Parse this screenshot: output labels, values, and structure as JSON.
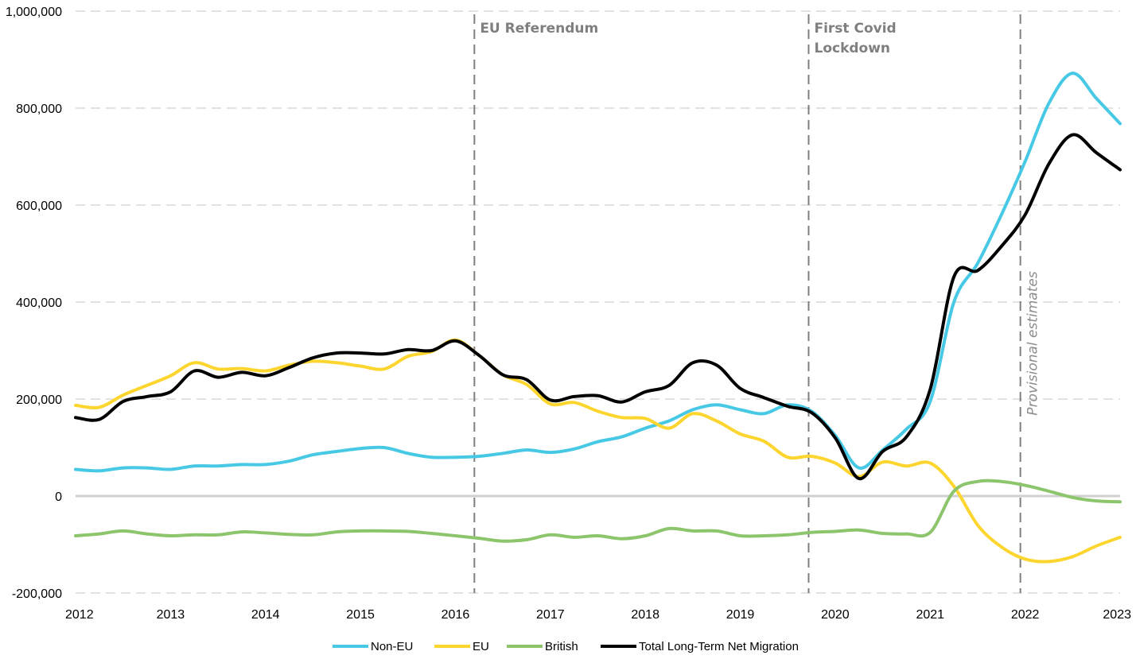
{
  "chart_data": {
    "type": "line",
    "title": "",
    "xlabel": "",
    "ylabel": "",
    "x_ticks": [
      "2012",
      "2013",
      "2014",
      "2015",
      "2016",
      "2017",
      "2018",
      "2019",
      "2020",
      "2021",
      "2022",
      "2023"
    ],
    "y_ticks": [
      "-200,000",
      "0",
      "200,000",
      "400,000",
      "600,000",
      "800,000",
      "1,000,000"
    ],
    "xlim": [
      2012,
      2023
    ],
    "ylim": [
      -200000,
      1000000
    ],
    "grid": "horizontal dashed",
    "legend_position": "bottom",
    "series": [
      {
        "name": "Non-EU",
        "color": "#47c9e5",
        "x": [
          2012,
          2012.25,
          2012.5,
          2012.75,
          2013,
          2013.25,
          2013.5,
          2013.75,
          2014,
          2014.25,
          2014.5,
          2014.75,
          2015,
          2015.25,
          2015.5,
          2015.75,
          2016,
          2016.25,
          2016.5,
          2016.75,
          2017,
          2017.25,
          2017.5,
          2017.75,
          2018,
          2018.25,
          2018.5,
          2018.75,
          2019,
          2019.25,
          2019.5,
          2019.75,
          2020,
          2020.25,
          2020.5,
          2020.75,
          2021,
          2021.25,
          2021.5,
          2021.75,
          2022,
          2022.25,
          2022.5,
          2022.75,
          2023
        ],
        "y": [
          55000,
          52000,
          58000,
          58000,
          55000,
          62000,
          62000,
          65000,
          65000,
          72000,
          85000,
          92000,
          98000,
          100000,
          88000,
          80000,
          80000,
          82000,
          88000,
          95000,
          90000,
          97000,
          112000,
          122000,
          140000,
          155000,
          178000,
          188000,
          178000,
          170000,
          188000,
          175000,
          125000,
          58000,
          95000,
          138000,
          195000,
          400000,
          480000,
          580000,
          690000,
          810000,
          872000,
          820000,
          768000
        ]
      },
      {
        "name": "EU",
        "color": "#fdd52f",
        "x": [
          2012,
          2012.25,
          2012.5,
          2012.75,
          2013,
          2013.25,
          2013.5,
          2013.75,
          2014,
          2014.25,
          2014.5,
          2014.75,
          2015,
          2015.25,
          2015.5,
          2015.75,
          2016,
          2016.25,
          2016.5,
          2016.75,
          2017,
          2017.25,
          2017.5,
          2017.75,
          2018,
          2018.25,
          2018.5,
          2018.75,
          2019,
          2019.25,
          2019.5,
          2019.75,
          2020,
          2020.25,
          2020.5,
          2020.75,
          2021,
          2021.25,
          2021.5,
          2021.75,
          2022,
          2022.25,
          2022.5,
          2022.75,
          2023
        ],
        "y": [
          187000,
          183000,
          208000,
          228000,
          248000,
          275000,
          262000,
          263000,
          258000,
          270000,
          278000,
          275000,
          268000,
          262000,
          288000,
          298000,
          322000,
          290000,
          250000,
          230000,
          190000,
          193000,
          175000,
          162000,
          160000,
          140000,
          170000,
          155000,
          128000,
          113000,
          80000,
          82000,
          68000,
          40000,
          70000,
          62000,
          68000,
          20000,
          -60000,
          -105000,
          -130000,
          -135000,
          -125000,
          -103000,
          -85000
        ]
      },
      {
        "name": "British",
        "color": "#8cc56b",
        "x": [
          2012,
          2012.25,
          2012.5,
          2012.75,
          2013,
          2013.25,
          2013.5,
          2013.75,
          2014,
          2014.25,
          2014.5,
          2014.75,
          2015,
          2015.25,
          2015.5,
          2015.75,
          2016,
          2016.25,
          2016.5,
          2016.75,
          2017,
          2017.25,
          2017.5,
          2017.75,
          2018,
          2018.25,
          2018.5,
          2018.75,
          2019,
          2019.25,
          2019.5,
          2019.75,
          2020,
          2020.25,
          2020.5,
          2020.75,
          2021,
          2021.25,
          2021.5,
          2021.75,
          2022,
          2022.25,
          2022.5,
          2022.75,
          2023
        ],
        "y": [
          -82000,
          -78000,
          -72000,
          -78000,
          -82000,
          -80000,
          -80000,
          -74000,
          -76000,
          -79000,
          -80000,
          -74000,
          -72000,
          -72000,
          -73000,
          -77000,
          -82000,
          -87000,
          -93000,
          -90000,
          -80000,
          -85000,
          -82000,
          -88000,
          -82000,
          -67000,
          -72000,
          -72000,
          -82000,
          -82000,
          -80000,
          -75000,
          -73000,
          -70000,
          -77000,
          -78000,
          -75000,
          10000,
          30000,
          30000,
          22000,
          10000,
          -3000,
          -10000,
          -12000
        ]
      },
      {
        "name": "Total Long-Term Net Migration",
        "color": "#000000",
        "x": [
          2012,
          2012.25,
          2012.5,
          2012.75,
          2013,
          2013.25,
          2013.5,
          2013.75,
          2014,
          2014.25,
          2014.5,
          2014.75,
          2015,
          2015.25,
          2015.5,
          2015.75,
          2016,
          2016.25,
          2016.5,
          2016.75,
          2017,
          2017.25,
          2017.5,
          2017.75,
          2018,
          2018.25,
          2018.5,
          2018.75,
          2019,
          2019.25,
          2019.5,
          2019.75,
          2020,
          2020.25,
          2020.5,
          2020.75,
          2021,
          2021.25,
          2021.5,
          2021.75,
          2022,
          2022.25,
          2022.5,
          2022.75,
          2023
        ],
        "y": [
          162000,
          158000,
          195000,
          205000,
          215000,
          258000,
          245000,
          255000,
          248000,
          265000,
          285000,
          295000,
          295000,
          293000,
          302000,
          300000,
          320000,
          290000,
          250000,
          240000,
          198000,
          205000,
          207000,
          194000,
          215000,
          228000,
          275000,
          270000,
          222000,
          203000,
          185000,
          172000,
          120000,
          36000,
          92000,
          122000,
          220000,
          452000,
          465000,
          515000,
          580000,
          685000,
          745000,
          708000,
          673000
        ]
      }
    ],
    "annotations": [
      {
        "x": 2016.2,
        "label_lines": [
          "EU Referendum"
        ]
      },
      {
        "x": 2019.72,
        "label_lines": [
          "First Covid",
          "Lockdown"
        ]
      },
      {
        "x": 2021.95,
        "label_lines": [
          "Provisional estimates"
        ]
      }
    ]
  }
}
